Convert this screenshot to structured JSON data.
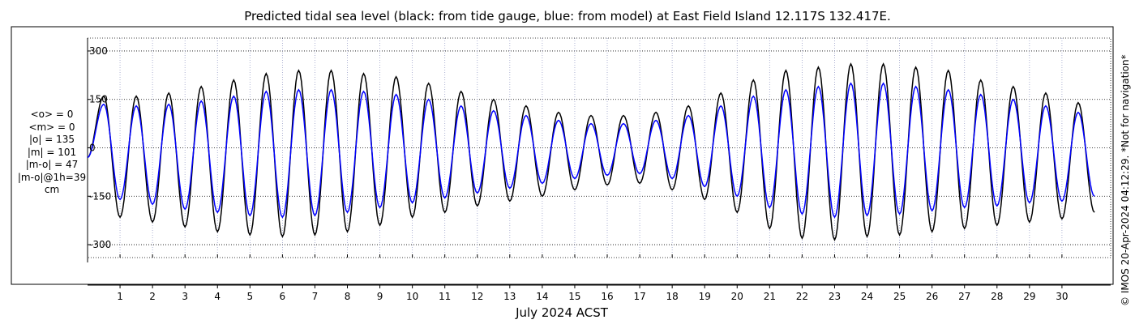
{
  "chart_data": {
    "type": "line",
    "title": "Predicted tidal sea level (black: from tide gauge, blue: from model) at East Field Island 12.117S 132.417E.",
    "xlabel": "July 2024 ACST",
    "ylabel": "",
    "ylim": [
      -340,
      340
    ],
    "xlim": [
      0,
      31.5
    ],
    "yticks": [
      -300,
      -150,
      0,
      150,
      300
    ],
    "ytick_labels": [
      "-300",
      "-150",
      "0",
      "150",
      "300"
    ],
    "xticks": [
      1,
      2,
      3,
      4,
      5,
      6,
      7,
      8,
      9,
      10,
      11,
      12,
      13,
      14,
      15,
      16,
      17,
      18,
      19,
      20,
      21,
      22,
      23,
      24,
      25,
      26,
      27,
      28,
      29,
      30
    ],
    "xtick_labels": [
      "1",
      "2",
      "3",
      "4",
      "5",
      "6",
      "7",
      "8",
      "9",
      "10",
      "11",
      "12",
      "13",
      "14",
      "15",
      "16",
      "17",
      "18",
      "19",
      "20",
      "21",
      "22",
      "23",
      "24",
      "25",
      "26",
      "27",
      "28",
      "29",
      "30"
    ],
    "grid": true,
    "series": [
      {
        "name": "from tide gauge",
        "color": "#000000",
        "x": [
          0.0,
          0.5,
          1.0,
          1.5,
          2.0,
          2.5,
          3.0,
          3.5,
          4.0,
          4.5,
          5.0,
          5.5,
          6.0,
          6.5,
          7.0,
          7.5,
          8.0,
          8.5,
          9.0,
          9.5,
          10.0,
          10.5,
          11.0,
          11.5,
          12.0,
          12.5,
          13.0,
          13.5,
          14.0,
          14.5,
          15.0,
          15.5,
          16.0,
          16.5,
          17.0,
          17.5,
          18.0,
          18.5,
          19.0,
          19.5,
          20.0,
          20.5,
          21.0,
          21.5,
          22.0,
          22.5,
          23.0,
          23.5,
          24.0,
          24.5,
          25.0,
          25.5,
          26.0,
          26.5,
          27.0,
          27.5,
          28.0,
          28.5,
          29.0,
          29.5,
          30.0,
          30.5,
          31.0
        ],
        "values": [
          -30,
          160,
          -215,
          160,
          -230,
          170,
          -245,
          190,
          -260,
          210,
          -270,
          230,
          -275,
          240,
          -270,
          240,
          -260,
          230,
          -240,
          220,
          -215,
          200,
          -200,
          175,
          -180,
          150,
          -165,
          130,
          -150,
          110,
          -130,
          100,
          -115,
          100,
          -110,
          110,
          -130,
          130,
          -160,
          170,
          -200,
          210,
          -250,
          240,
          -280,
          250,
          -285,
          260,
          -275,
          260,
          -270,
          250,
          -260,
          240,
          -250,
          210,
          -240,
          190,
          -230,
          170,
          -220,
          140,
          -200
        ]
      },
      {
        "name": "from model",
        "color": "#0000ff",
        "x": [
          0.0,
          0.5,
          1.0,
          1.5,
          2.0,
          2.5,
          3.0,
          3.5,
          4.0,
          4.5,
          5.0,
          5.5,
          6.0,
          6.5,
          7.0,
          7.5,
          8.0,
          8.5,
          9.0,
          9.5,
          10.0,
          10.5,
          11.0,
          11.5,
          12.0,
          12.5,
          13.0,
          13.5,
          14.0,
          14.5,
          15.0,
          15.5,
          16.0,
          16.5,
          17.0,
          17.5,
          18.0,
          18.5,
          19.0,
          19.5,
          20.0,
          20.5,
          21.0,
          21.5,
          22.0,
          22.5,
          23.0,
          23.5,
          24.0,
          24.5,
          25.0,
          25.5,
          26.0,
          26.5,
          27.0,
          27.5,
          28.0,
          28.5,
          29.0,
          29.5,
          30.0,
          30.5,
          31.0
        ],
        "values": [
          -30,
          135,
          -160,
          130,
          -175,
          135,
          -190,
          145,
          -200,
          160,
          -210,
          175,
          -215,
          180,
          -210,
          180,
          -200,
          175,
          -185,
          165,
          -170,
          150,
          -155,
          130,
          -140,
          115,
          -125,
          100,
          -110,
          85,
          -95,
          75,
          -85,
          75,
          -80,
          85,
          -95,
          100,
          -120,
          130,
          -150,
          160,
          -185,
          180,
          -205,
          190,
          -215,
          200,
          -210,
          200,
          -205,
          190,
          -195,
          180,
          -185,
          165,
          -180,
          150,
          -170,
          130,
          -165,
          110,
          -150
        ]
      }
    ],
    "stats_lines": [
      "<o> = 0",
      "<m> = 0",
      "|o| = 135",
      "|m| = 101",
      "|m-o| = 47",
      "|m-o|@1h=39",
      "cm"
    ],
    "watermark": "© IMOS 20-Apr-2024 04:12:29. *Not for navigation*"
  }
}
